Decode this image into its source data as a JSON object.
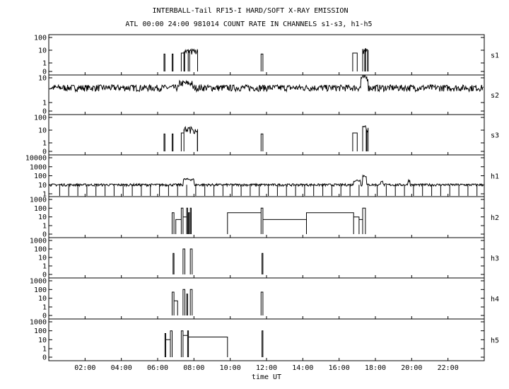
{
  "chart_data": {
    "type": "line",
    "title": "INTERBALL-Tail RF15-I HARD/SOFT X-RAY EMISSION",
    "subtitle": "ATL 00:00 24:00 981014  COUNT RATE IN CHANNELS s1-s3, h1-h5",
    "xlabel": "time UT",
    "xlim": [
      0,
      24
    ],
    "x_tick_values": [
      2,
      4,
      6,
      8,
      10,
      12,
      14,
      16,
      18,
      20,
      22
    ],
    "x_tick_labels": [
      "02:00",
      "04:00",
      "06:00",
      "08:00",
      "10:00",
      "12:00",
      "14:00",
      "16:00",
      "18:00",
      "20:00",
      "22:00"
    ],
    "y_scale": "log",
    "grid": false,
    "panels": [
      {
        "name": "s1",
        "y_tick_labels": [
          "100",
          "10",
          "1",
          "0"
        ],
        "kind": "bursts",
        "baseline": 0,
        "events": [
          {
            "t0": 6.35,
            "t1": 6.4,
            "level": 5
          },
          {
            "t0": 6.8,
            "t1": 6.85,
            "level": 5
          },
          {
            "t0": 7.3,
            "t1": 7.45,
            "level": 6
          },
          {
            "t0": 7.45,
            "t1": 8.2,
            "level": 8,
            "noisy": true
          },
          {
            "t0": 11.7,
            "t1": 11.8,
            "level": 5
          },
          {
            "t0": 16.75,
            "t1": 17.0,
            "level": 6
          },
          {
            "t0": 17.3,
            "t1": 17.6,
            "level": 10,
            "noisy": true
          }
        ]
      },
      {
        "name": "s2",
        "y_tick_labels": [
          "10",
          "1",
          "0"
        ],
        "kind": "noise",
        "background": 4,
        "features": [
          {
            "t0": 7.2,
            "t1": 7.9,
            "level": 6
          },
          {
            "t0": 17.2,
            "t1": 17.6,
            "level": 10
          }
        ]
      },
      {
        "name": "s3",
        "y_tick_labels": [
          "100",
          "10",
          "1",
          "0"
        ],
        "kind": "bursts",
        "baseline": 0,
        "events": [
          {
            "t0": 6.35,
            "t1": 6.4,
            "level": 5
          },
          {
            "t0": 6.8,
            "t1": 6.85,
            "level": 5
          },
          {
            "t0": 7.3,
            "t1": 7.45,
            "level": 6
          },
          {
            "t0": 7.45,
            "t1": 8.2,
            "level": 12,
            "noisy": true
          },
          {
            "t0": 11.7,
            "t1": 11.8,
            "level": 5
          },
          {
            "t0": 16.75,
            "t1": 17.0,
            "level": 6
          },
          {
            "t0": 17.3,
            "t1": 17.6,
            "level": 15,
            "noisy": true
          }
        ]
      },
      {
        "name": "h1",
        "y_tick_labels": [
          "10000",
          "1000",
          "100",
          "10",
          "1"
        ],
        "kind": "noise_dropouts",
        "background": 10,
        "dropout_period_h": 0.5,
        "features": [
          {
            "t0": 7.4,
            "t1": 8.0,
            "level": 40
          },
          {
            "t0": 16.8,
            "t1": 17.2,
            "level": 30
          },
          {
            "t0": 17.3,
            "t1": 17.5,
            "level": 100
          },
          {
            "t0": 18.3,
            "t1": 18.4,
            "level": 30
          },
          {
            "t0": 19.8,
            "t1": 19.9,
            "level": 30
          }
        ]
      },
      {
        "name": "h2",
        "y_tick_labels": [
          "1000",
          "100",
          "10",
          "1",
          "0"
        ],
        "kind": "steps",
        "baseline": 0,
        "steps": [
          {
            "t0": 6.8,
            "t1": 6.9,
            "level": 30
          },
          {
            "t0": 7.0,
            "t1": 7.3,
            "level": 5
          },
          {
            "t0": 7.3,
            "t1": 7.4,
            "level": 100
          },
          {
            "t0": 7.4,
            "t1": 7.6,
            "level": 10
          },
          {
            "t0": 7.6,
            "t1": 7.65,
            "level": 100
          },
          {
            "t0": 7.7,
            "t1": 7.75,
            "level": 30
          },
          {
            "t0": 7.8,
            "t1": 7.85,
            "level": 100
          },
          {
            "t0": 9.85,
            "t1": 11.7,
            "level": 30
          },
          {
            "t0": 11.7,
            "t1": 11.8,
            "level": 100
          },
          {
            "t0": 11.8,
            "t1": 14.2,
            "level": 5
          },
          {
            "t0": 14.2,
            "t1": 16.8,
            "level": 30
          },
          {
            "t0": 16.8,
            "t1": 17.1,
            "level": 10
          },
          {
            "t0": 17.1,
            "t1": 17.3,
            "level": 5
          },
          {
            "t0": 17.3,
            "t1": 17.45,
            "level": 100
          }
        ]
      },
      {
        "name": "h3",
        "y_tick_labels": [
          "1000",
          "100",
          "10",
          "1",
          "0"
        ],
        "kind": "steps",
        "baseline": 0,
        "steps": [
          {
            "t0": 6.85,
            "t1": 6.9,
            "level": 30
          },
          {
            "t0": 7.4,
            "t1": 7.5,
            "level": 100
          },
          {
            "t0": 7.8,
            "t1": 7.9,
            "level": 100
          },
          {
            "t0": 11.75,
            "t1": 11.8,
            "level": 30
          }
        ]
      },
      {
        "name": "h4",
        "y_tick_labels": [
          "1000",
          "100",
          "10",
          "1",
          "0"
        ],
        "kind": "steps",
        "baseline": 0,
        "steps": [
          {
            "t0": 6.8,
            "t1": 6.9,
            "level": 50
          },
          {
            "t0": 6.9,
            "t1": 7.1,
            "level": 5
          },
          {
            "t0": 7.4,
            "t1": 7.5,
            "level": 100
          },
          {
            "t0": 7.6,
            "t1": 7.65,
            "level": 30
          },
          {
            "t0": 7.8,
            "t1": 7.9,
            "level": 100
          },
          {
            "t0": 11.7,
            "t1": 11.8,
            "level": 50
          }
        ]
      },
      {
        "name": "h5",
        "y_tick_labels": [
          "1000",
          "100",
          "10",
          "1",
          "0"
        ],
        "kind": "steps",
        "baseline": 0,
        "steps": [
          {
            "t0": 6.4,
            "t1": 6.45,
            "level": 50
          },
          {
            "t0": 6.45,
            "t1": 6.7,
            "level": 10
          },
          {
            "t0": 6.7,
            "t1": 6.8,
            "level": 100
          },
          {
            "t0": 7.3,
            "t1": 7.4,
            "level": 100
          },
          {
            "t0": 7.4,
            "t1": 7.65,
            "level": 30
          },
          {
            "t0": 7.65,
            "t1": 7.7,
            "level": 100
          },
          {
            "t0": 7.7,
            "t1": 9.85,
            "level": 20
          },
          {
            "t0": 11.75,
            "t1": 11.8,
            "level": 100
          }
        ]
      }
    ]
  }
}
